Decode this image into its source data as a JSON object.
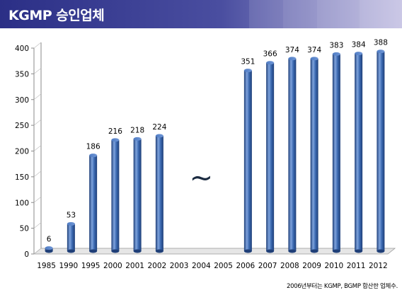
{
  "header": {
    "title": "KGMP 승인업체"
  },
  "colors": {
    "banner_dark": "#2b2f86",
    "banner_light": "#b7b3dd",
    "bar": "#3a68b0",
    "bar_highlight": "#7ea3dd",
    "bar_shadow": "#1f3f78",
    "tilde": "#1a2a40"
  },
  "chart_data": {
    "type": "bar",
    "title": "",
    "xlabel": "",
    "ylabel": "",
    "categories": [
      "1985",
      "1990",
      "1995",
      "2000",
      "2001",
      "2002",
      "2003",
      "2004",
      "2005",
      "2006",
      "2007",
      "2008",
      "2009",
      "2010",
      "2011",
      "2012"
    ],
    "values": [
      6,
      53,
      186,
      216,
      218,
      224,
      null,
      null,
      null,
      351,
      366,
      374,
      374,
      383,
      384,
      388
    ],
    "data_labels": [
      "6",
      "53",
      "186",
      "216",
      "218",
      "224",
      "",
      "",
      "",
      "351",
      "366",
      "374",
      "374",
      "383",
      "384",
      "388"
    ],
    "ylim": [
      0,
      400
    ],
    "yticks": [
      0,
      50,
      100,
      150,
      200,
      250,
      300,
      350,
      400
    ],
    "grid": false,
    "break_symbol": "~",
    "style": "3d-cylinder"
  },
  "footnote": "2006년부터는 KGMP, BGMP 합산한 업체수."
}
